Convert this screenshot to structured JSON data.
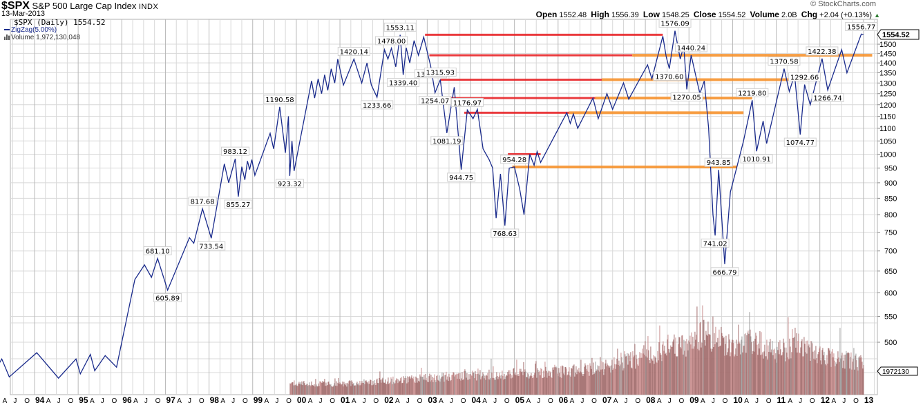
{
  "header": {
    "symbol": "$SPX",
    "name": "S&P 500 Large Cap Index",
    "exchange": "INDX",
    "date": "13-Mar-2013",
    "watermark": "© StockCharts.com",
    "quote": {
      "open_label": "Open",
      "open": "1552.48",
      "high_label": "High",
      "high": "1556.39",
      "low_label": "Low",
      "low": "1548.25",
      "close_label": "Close",
      "close": "1554.52",
      "volume_label": "Volume",
      "volume": "2.0B",
      "chg_label": "Chg",
      "chg": "+2.04 (+0.13%)",
      "direction": "up"
    }
  },
  "legend": {
    "price": "$SPX (Daily) 1554.52",
    "indicator": "ZigZag(5.00%)",
    "volume": "Volume 1,972,130,048"
  },
  "colors": {
    "zigzag": "#1a2b8c",
    "resistance": "#e8262a",
    "support": "#f7932e",
    "volume": "#a46f6f",
    "grid": "#d8d8d8"
  },
  "chart_data": {
    "type": "line",
    "title": "$SPX S&P 500 Large Cap Index INDX",
    "subtitle": "13-Mar-2013",
    "xlabel": "",
    "ylabel": "",
    "yscale": "log",
    "ylim": [
      640,
      1600
    ],
    "grid": true,
    "legend_position": "top-left",
    "y_ticks": [
      500,
      550,
      600,
      650,
      700,
      750,
      800,
      850,
      900,
      950,
      1000,
      1050,
      1100,
      1150,
      1200,
      1250,
      1300,
      1350,
      1400,
      1450,
      1500
    ],
    "x_tick_labels": [
      "A",
      "J",
      "O",
      "94",
      "A",
      "J",
      "O",
      "95",
      "A",
      "J",
      "O",
      "96",
      "A",
      "J",
      "O",
      "97",
      "A",
      "J",
      "O",
      "98",
      "A",
      "J",
      "O",
      "99",
      "A",
      "J",
      "O",
      "00",
      "A",
      "J",
      "O",
      "01",
      "A",
      "J",
      "O",
      "02",
      "A",
      "J",
      "O",
      "03",
      "A",
      "J",
      "O",
      "04",
      "A",
      "J",
      "O",
      "05",
      "A",
      "J",
      "O",
      "06",
      "A",
      "J",
      "O",
      "07",
      "A",
      "J",
      "O",
      "08",
      "A",
      "J",
      "O",
      "09",
      "A",
      "J",
      "O",
      "10",
      "A",
      "J",
      "O",
      "11",
      "A",
      "J",
      "O",
      "12",
      "A",
      "J",
      "O",
      "13"
    ],
    "last_price_label": "1554.52",
    "last_volume_label": "1972130",
    "series": [
      {
        "name": "ZigZag(5.00%)",
        "points": [
          [
            1993.05,
            445
          ],
          [
            1993.25,
            470
          ],
          [
            1993.42,
            440
          ],
          [
            1994.05,
            481
          ],
          [
            1994.55,
            438
          ],
          [
            1994.95,
            470
          ],
          [
            1995.05,
            445
          ],
          [
            1995.28,
            478
          ],
          [
            1995.38,
            450
          ],
          [
            1995.62,
            476
          ],
          [
            1995.88,
            456
          ],
          [
            1996.3,
            630
          ],
          [
            1996.52,
            665
          ],
          [
            1996.68,
            635
          ],
          [
            1996.82,
            681.1
          ],
          [
            1997.05,
            605.89
          ],
          [
            1997.55,
            735
          ],
          [
            1997.65,
            720
          ],
          [
            1997.85,
            817.68
          ],
          [
            1998.05,
            733.54
          ],
          [
            1998.35,
            965
          ],
          [
            1998.45,
            900
          ],
          [
            1998.6,
            983.12
          ],
          [
            1998.67,
            855.27
          ],
          [
            1998.75,
            955
          ],
          [
            1998.82,
            910
          ],
          [
            1998.88,
            975
          ],
          [
            1998.93,
            945
          ],
          [
            1998.98,
            980
          ],
          [
            1999.05,
            925
          ],
          [
            1999.4,
            1080
          ],
          [
            1999.48,
            1020
          ],
          [
            1999.62,
            1190.58
          ],
          [
            1999.75,
            1005
          ],
          [
            1999.82,
            1150
          ],
          [
            1999.85,
            923.32
          ],
          [
            1999.9,
            1050
          ],
          [
            1999.95,
            940
          ],
          [
            2000.35,
            1310
          ],
          [
            2000.42,
            1230
          ],
          [
            2000.5,
            1320
          ],
          [
            2000.58,
            1250
          ],
          [
            2000.65,
            1340
          ],
          [
            2000.72,
            1265
          ],
          [
            2000.8,
            1370
          ],
          [
            2000.88,
            1300
          ],
          [
            2000.95,
            1420
          ],
          [
            2001.08,
            1290
          ],
          [
            2001.32,
            1420.14
          ],
          [
            2001.5,
            1300
          ],
          [
            2001.62,
            1400
          ],
          [
            2001.72,
            1290
          ],
          [
            2001.85,
            1233.66
          ],
          [
            2002.02,
            1470
          ],
          [
            2002.1,
            1420
          ],
          [
            2002.18,
            1478.0
          ],
          [
            2002.28,
            1380
          ],
          [
            2002.38,
            1553.11
          ],
          [
            2002.45,
            1339.4
          ],
          [
            2002.52,
            1480
          ],
          [
            2002.6,
            1400
          ],
          [
            2002.7,
            1520
          ],
          [
            2002.8,
            1440
          ],
          [
            2002.92,
            1540
          ],
          [
            2003.08,
            1383.37
          ],
          [
            2003.18,
            1254.07
          ],
          [
            2003.3,
            1315.93
          ],
          [
            2003.45,
            1081.19
          ],
          [
            2003.62,
            1280
          ],
          [
            2003.78,
            944.75
          ],
          [
            2003.92,
            1176.97
          ],
          [
            2004.05,
            1140
          ],
          [
            2004.15,
            1180
          ],
          [
            2004.28,
            1020
          ],
          [
            2004.42,
            980
          ],
          [
            2004.5,
            950
          ],
          [
            2004.58,
            790
          ],
          [
            2004.68,
            930
          ],
          [
            2004.78,
            768.63
          ],
          [
            2004.88,
            950
          ],
          [
            2005.0,
            954.28
          ],
          [
            2005.12,
            880
          ],
          [
            2005.22,
            800
          ],
          [
            2005.35,
            1000
          ],
          [
            2005.45,
            960
          ],
          [
            2005.52,
            1010
          ],
          [
            2005.6,
            970
          ],
          [
            2006.2,
            1165
          ],
          [
            2006.28,
            1120
          ],
          [
            2006.35,
            1160
          ],
          [
            2006.45,
            1100
          ],
          [
            2006.8,
            1230
          ],
          [
            2006.92,
            1140
          ],
          [
            2007.12,
            1250
          ],
          [
            2007.25,
            1180
          ],
          [
            2007.5,
            1300
          ],
          [
            2007.62,
            1225
          ],
          [
            2008.05,
            1390
          ],
          [
            2008.15,
            1320
          ],
          [
            2008.4,
            1545
          ],
          [
            2008.48,
            1430
          ],
          [
            2008.55,
            1370.6
          ],
          [
            2008.68,
            1576.09
          ],
          [
            2008.8,
            1420
          ],
          [
            2008.88,
            1490
          ],
          [
            2008.95,
            1270.05
          ],
          [
            2009.05,
            1440.24
          ],
          [
            2009.25,
            1250
          ],
          [
            2009.35,
            1310
          ],
          [
            2009.45,
            1100
          ],
          [
            2009.55,
            800
          ],
          [
            2009.6,
            741.02
          ],
          [
            2009.68,
            943.85
          ],
          [
            2009.82,
            666.79
          ],
          [
            2009.95,
            870
          ],
          [
            2010.1,
            955
          ],
          [
            2010.25,
            1050
          ],
          [
            2010.45,
            1219.8
          ],
          [
            2010.55,
            1010.91
          ],
          [
            2010.7,
            1130
          ],
          [
            2010.78,
            1040
          ],
          [
            2011.18,
            1370.58
          ],
          [
            2011.3,
            1260
          ],
          [
            2011.42,
            1340
          ],
          [
            2011.55,
            1074.77
          ],
          [
            2011.65,
            1292.66
          ],
          [
            2011.78,
            1200
          ],
          [
            2012.05,
            1422.38
          ],
          [
            2012.18,
            1266.74
          ],
          [
            2012.5,
            1470
          ],
          [
            2012.62,
            1350
          ],
          [
            2012.95,
            1556.77
          ],
          [
            2013.0,
            1554.52
          ]
        ]
      }
    ],
    "annotations": [
      "605.89",
      "681.10",
      "733.54",
      "817.68",
      "855.27",
      "923.32",
      "983.12",
      "1190.58",
      "1233.66",
      "1339.40",
      "1420.14",
      "1478.00",
      "1553.11",
      "1081.19",
      "1254.07",
      "1315.93",
      "1383.37",
      "944.75",
      "1176.97",
      "768.63",
      "954.28",
      "1576.09",
      "1370.60",
      "1440.24",
      "1270.05",
      "943.85",
      "741.02",
      "666.79",
      "1010.91",
      "1219.80",
      "1074.77",
      "1292.66",
      "1370.58",
      "1266.74",
      "1422.38",
      "1556.77"
    ],
    "horizontal_lines": [
      {
        "level": 1553,
        "red_from": 2002.95,
        "red_to": 2008.4,
        "orange_to": null
      },
      {
        "level": 1440,
        "red_from": 2003.05,
        "red_to": 2007.7,
        "orange_to": 2013.2
      },
      {
        "level": 1316,
        "red_from": 2003.3,
        "red_to": 2007.0,
        "orange_to": 2011.78
      },
      {
        "level": 1230,
        "red_from": 2003.5,
        "red_to": 2006.85,
        "orange_to": 2010.45
      },
      {
        "level": 1165,
        "red_from": 2003.85,
        "red_to": 2006.25,
        "orange_to": 2010.25
      },
      {
        "level": 1000,
        "red_from": 2004.85,
        "red_to": 2005.6,
        "orange_to": null
      },
      {
        "level": 954,
        "red_from": null,
        "red_to": 2004.95,
        "orange_to": 2010.1
      }
    ],
    "volume": {
      "start_year": 1999.85,
      "end_year": 2013.0,
      "profile": [
        [
          1999.85,
          15
        ],
        [
          2001.0,
          14
        ],
        [
          2002.0,
          18
        ],
        [
          2003.0,
          22
        ],
        [
          2004.0,
          25
        ],
        [
          2005.0,
          28
        ],
        [
          2006.0,
          30
        ],
        [
          2007.0,
          35
        ],
        [
          2008.0,
          50
        ],
        [
          2008.9,
          65
        ],
        [
          2009.2,
          80
        ],
        [
          2009.6,
          75
        ],
        [
          2010.0,
          60
        ],
        [
          2010.5,
          70
        ],
        [
          2011.0,
          55
        ],
        [
          2011.6,
          68
        ],
        [
          2012.0,
          50
        ],
        [
          2013.0,
          42
        ]
      ]
    }
  }
}
